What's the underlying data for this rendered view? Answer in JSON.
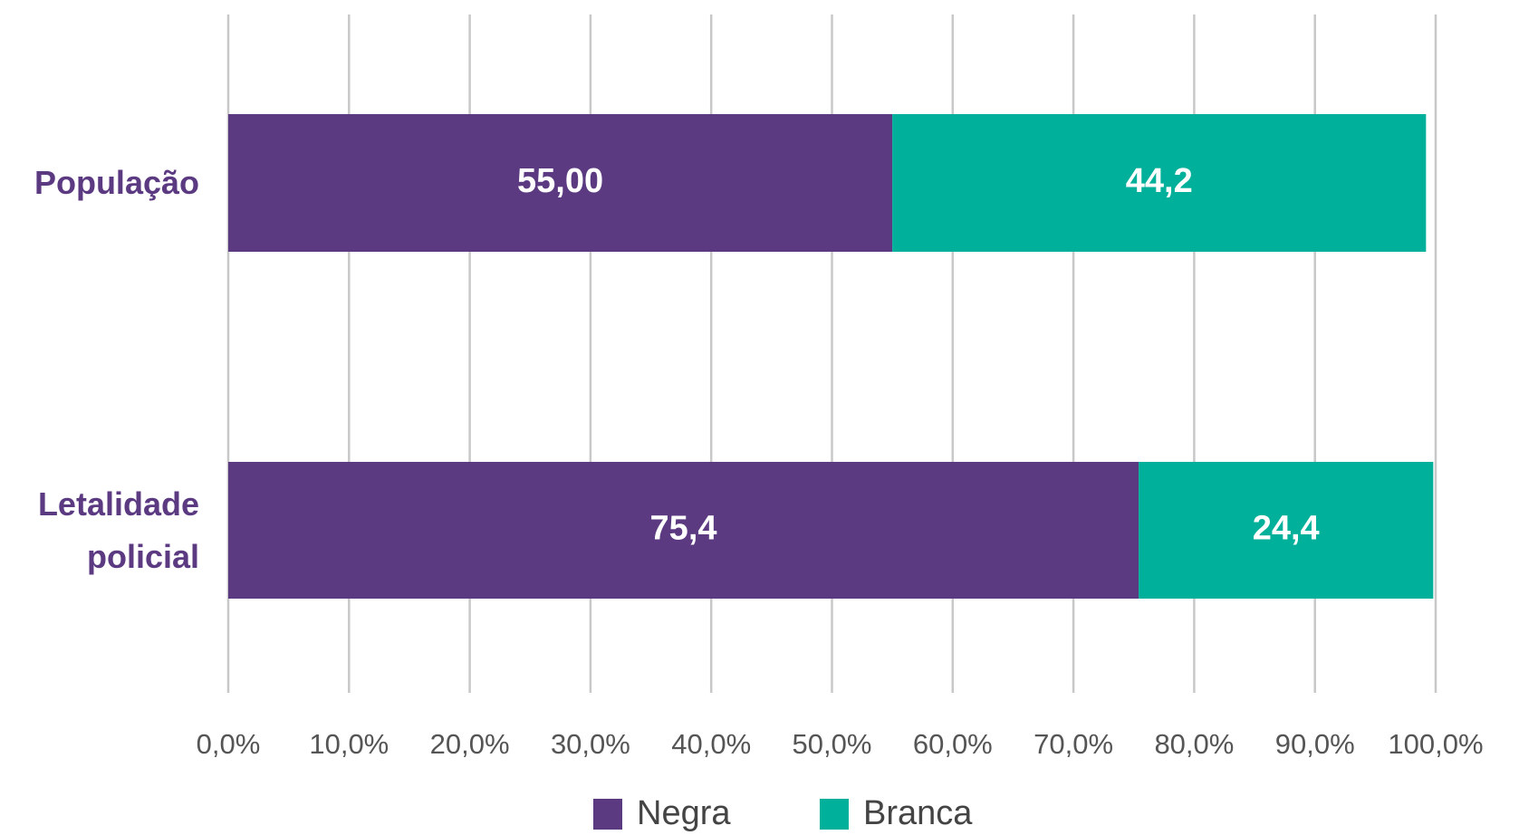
{
  "chart_data": {
    "type": "stacked_barh",
    "categories": [
      "População",
      "Letalidade policial"
    ],
    "series": [
      {
        "name": "Negra",
        "color": "#5b3a82",
        "values": [
          55.0,
          75.4
        ],
        "value_labels": [
          "55,00",
          "75,4"
        ]
      },
      {
        "name": "Branca",
        "color": "#00b09a",
        "values": [
          44.2,
          24.4
        ],
        "value_labels": [
          "44,2",
          "24,4"
        ]
      }
    ],
    "xlim": [
      0,
      100
    ],
    "xticks": [
      {
        "value": 0,
        "label": "0,0%"
      },
      {
        "value": 10,
        "label": "10,0%"
      },
      {
        "value": 20,
        "label": "20,0%"
      },
      {
        "value": 30,
        "label": "30,0%"
      },
      {
        "value": 40,
        "label": "40,0%"
      },
      {
        "value": 50,
        "label": "50,0%"
      },
      {
        "value": 60,
        "label": "60,0%"
      },
      {
        "value": 70,
        "label": "70,0%"
      },
      {
        "value": 80,
        "label": "80,0%"
      },
      {
        "value": 90,
        "label": "90,0%"
      },
      {
        "value": 100,
        "label": "100,0%"
      }
    ],
    "grid": true,
    "legend": "bottom"
  }
}
